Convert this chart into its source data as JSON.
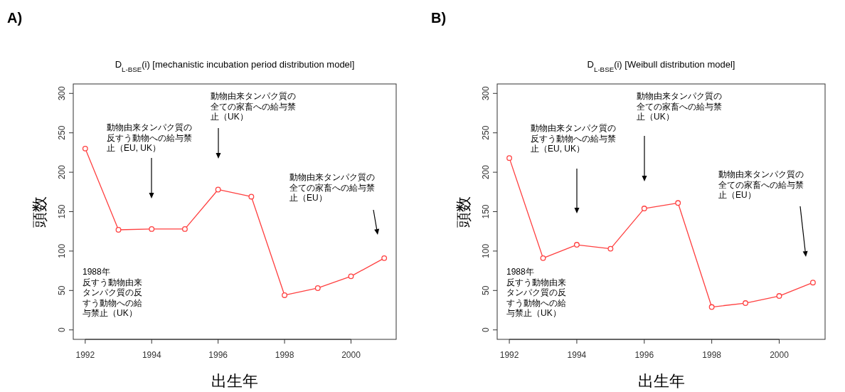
{
  "chart_data": [
    {
      "type": "line",
      "title": "A)",
      "subtitle": "D$_{L-BSE}$(i) [mechanistic incubation period distribution model]",
      "xlabel": "出生年",
      "ylabel": "頭数",
      "x": [
        1992,
        1993,
        1994,
        1995,
        1996,
        1997,
        1998,
        1999,
        2000,
        2001
      ],
      "series": [
        {
          "color": "#ff4040",
          "values": [
            230,
            127,
            128,
            128,
            178,
            169,
            44,
            53,
            68,
            91
          ]
        }
      ],
      "xlim": [
        1991.64,
        2001.36
      ],
      "ylim": [
        -12,
        312
      ],
      "xticks": [
        1992,
        1994,
        1996,
        1998,
        2000
      ],
      "yticks": [
        0,
        50,
        100,
        150,
        200,
        250,
        300
      ],
      "marker": "circle",
      "grid": false,
      "annotations": [
        "動物由来タンパク質の反すう動物への給与禁止（EU, UK）",
        "動物由来タンパク質の全ての家畜への給与禁止（UK）",
        "動物由来タンパク質の全ての家畜への給与禁止（EU）",
        "1988年反すう動物由来タンパク質の反すう動物への給与禁止（UK）"
      ]
    },
    {
      "type": "line",
      "title": "B)",
      "subtitle": "D$_{L-BSE}$(i) [Weibull distribution model]",
      "xlabel": "出生年",
      "ylabel": "頭数",
      "x": [
        1992,
        1993,
        1994,
        1995,
        1996,
        1997,
        1998,
        1999,
        2000,
        2001
      ],
      "series": [
        {
          "color": "#ff4040",
          "values": [
            218,
            91,
            108,
            103,
            154,
            161,
            29,
            34,
            43,
            60
          ]
        }
      ],
      "xlim": [
        1991.64,
        2001.36
      ],
      "ylim": [
        -12,
        312
      ],
      "xticks": [
        1992,
        1994,
        1996,
        1998,
        2000
      ],
      "yticks": [
        0,
        50,
        100,
        150,
        200,
        250,
        300
      ],
      "marker": "circle",
      "grid": false,
      "annotations": [
        "動物由来タンパク質の反すう動物への給与禁止（EU, UK）",
        "動物由来タンパク質の全ての家畜への給与禁止（UK）",
        "動物由来タンパク質の全ての家畜への給与禁止（EU）",
        "1988年反すう動物由来タンパク質の反すう動物への給与禁止（UK）"
      ]
    }
  ]
}
